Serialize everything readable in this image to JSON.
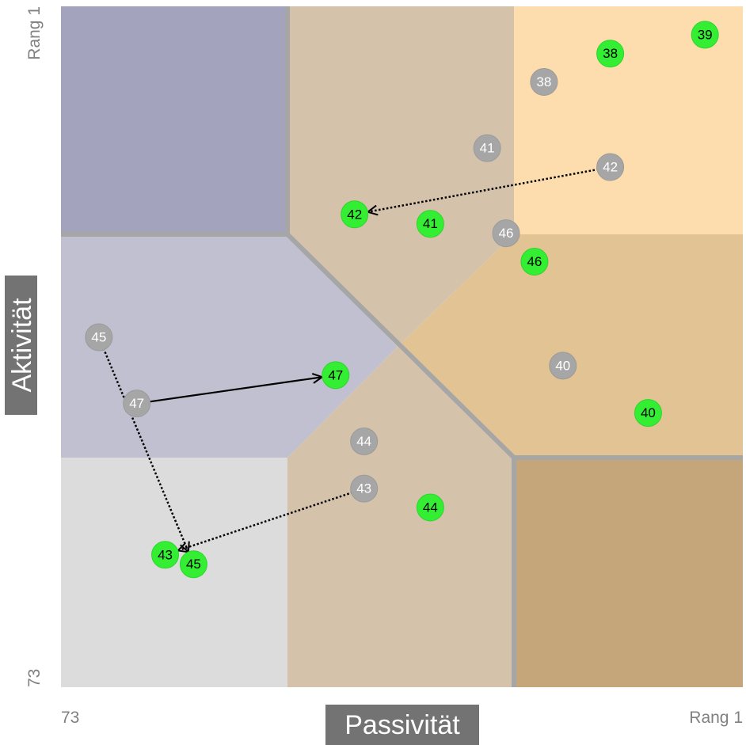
{
  "chart_data": {
    "type": "scatter",
    "xlabel": "Passivität",
    "ylabel": "Aktivität",
    "x_tick_labels": {
      "left": "73",
      "right": "Rang 1"
    },
    "y_tick_labels": {
      "top": "Rang 1",
      "bottom": "73"
    },
    "xlim": [
      73,
      1
    ],
    "ylim": [
      73,
      1
    ],
    "grid": false,
    "colors": {
      "before_marker": "#a6a6a6",
      "after_marker": "#33ee33",
      "region_dark_blue": "#a3a3bd",
      "region_light_blue": "#c0c0d0",
      "region_light_gray": "#dcdcdc",
      "region_beige": "#d4c2ab",
      "region_peach": "#fddcad",
      "region_orange_beige": "#e2c393",
      "region_brown": "#c5a67b",
      "divider": "#a6a6a6"
    },
    "series": [
      {
        "values": [
          {
            "label": "38",
            "x": 22,
            "y": 9
          },
          {
            "label": "41",
            "x": 28,
            "y": 16
          },
          {
            "label": "42",
            "x": 15,
            "y": 18
          },
          {
            "label": "46",
            "x": 26,
            "y": 25
          },
          {
            "label": "45",
            "x": 69,
            "y": 36
          },
          {
            "label": "47",
            "x": 65,
            "y": 43
          },
          {
            "label": "40",
            "x": 20,
            "y": 39
          },
          {
            "label": "44",
            "x": 41,
            "y": 47
          },
          {
            "label": "43",
            "x": 41,
            "y": 52
          }
        ]
      },
      {
        "values": [
          {
            "label": "39",
            "x": 5,
            "y": 4
          },
          {
            "label": "38",
            "x": 15,
            "y": 6
          },
          {
            "label": "42",
            "x": 42,
            "y": 23
          },
          {
            "label": "41",
            "x": 34,
            "y": 24
          },
          {
            "label": "46",
            "x": 23,
            "y": 28
          },
          {
            "label": "47",
            "x": 44,
            "y": 40
          },
          {
            "label": "40",
            "x": 11,
            "y": 44
          },
          {
            "label": "44",
            "x": 34,
            "y": 54
          },
          {
            "label": "43",
            "x": 62,
            "y": 59
          },
          {
            "label": "45",
            "x": 59,
            "y": 60
          }
        ]
      }
    ],
    "arrows": [
      {
        "from": "42",
        "style": "dotted"
      },
      {
        "from": "47",
        "style": "solid"
      },
      {
        "from": "45",
        "style": "dotted"
      },
      {
        "from": "43",
        "style": "dotted"
      }
    ]
  }
}
